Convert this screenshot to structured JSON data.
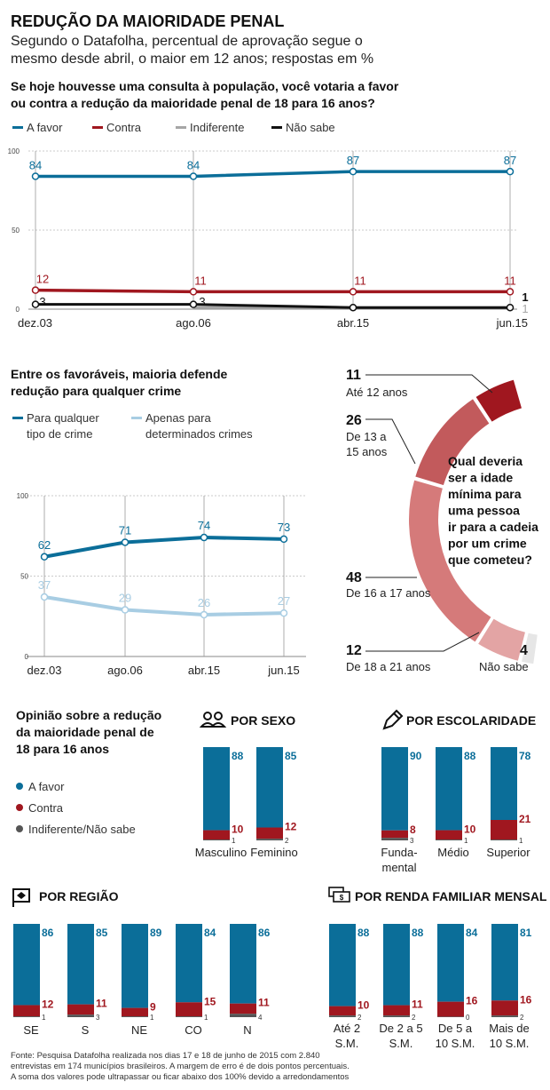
{
  "header": {
    "title": "REDUÇÃO DA MAIORIDADE PENAL",
    "subtitle_1": "Segundo o Datafolha, percentual de aprovação segue o",
    "subtitle_2": "mesmo desde abril, o maior em 12 anos; respostas em %",
    "question_1": "Se hoje houvesse uma consulta à população, você votaria a favor",
    "question_2": "ou contra a redução da maioridade penal de 18 para 16 anos?"
  },
  "colors": {
    "blue": "#0b6e99",
    "red": "#a0171f",
    "gray": "#a6a6a6",
    "black": "#111111",
    "lightblue": "#a8cde3",
    "darkgray": "#555555"
  },
  "chart_data": [
    {
      "type": "line",
      "title": "Se hoje houvesse uma consulta à população, você votaria a favor ou contra a redução da maioridade penal de 18 para 16 anos?",
      "categories": [
        "dez.03",
        "ago.06",
        "abr.15",
        "jun.15"
      ],
      "y_ticks": [
        "100",
        "50",
        "0"
      ],
      "ylim": [
        0,
        100
      ],
      "legend": [
        "A favor",
        "Contra",
        "Indiferente",
        "Não sabe"
      ],
      "series": [
        {
          "name": "A favor",
          "values": [
            84,
            84,
            87,
            87
          ],
          "labels": [
            "84",
            "84",
            "87",
            "87"
          ]
        },
        {
          "name": "Contra",
          "values": [
            12,
            11,
            11,
            11
          ],
          "labels": [
            "12",
            "11",
            "11",
            "11"
          ]
        },
        {
          "name": "Indiferente",
          "values": [
            null,
            null,
            1,
            1
          ],
          "labels": [
            "",
            "",
            "",
            "1"
          ]
        },
        {
          "name": "Não sabe",
          "values": [
            3,
            3,
            1,
            1
          ],
          "labels": [
            "3",
            "3",
            "",
            "1"
          ]
        }
      ]
    },
    {
      "type": "line",
      "title": "Entre os favoráveis, maioria defende redução para qualquer crime",
      "categories": [
        "dez.03",
        "ago.06",
        "abr.15",
        "jun.15"
      ],
      "y_ticks": [
        "100",
        "50",
        "0"
      ],
      "ylim": [
        0,
        100
      ],
      "legend": [
        "Para qualquer tipo de crime",
        "Apenas para determinados crimes"
      ],
      "series": [
        {
          "name": "Para qualquer tipo de crime",
          "values": [
            62,
            71,
            74,
            73
          ],
          "labels": [
            "62",
            "71",
            "74",
            "73"
          ]
        },
        {
          "name": "Apenas para determinados crimes",
          "values": [
            37,
            29,
            26,
            27
          ],
          "labels": [
            "37",
            "29",
            "26",
            "27"
          ]
        }
      ]
    },
    {
      "type": "pie",
      "title": "Qual deveria ser a idade mínima para uma pessoa ir para a cadeia por um crime que cometeu?",
      "slices": [
        {
          "label": "Até 12 anos",
          "value": 11
        },
        {
          "label": "De 13 a 15 anos",
          "value": 26
        },
        {
          "label": "De 16 a 17 anos",
          "value": 48
        },
        {
          "label": "De 18 a 21 anos",
          "value": 12
        },
        {
          "label": "Não sabe",
          "value": 4
        }
      ]
    },
    {
      "type": "bar",
      "title": "POR SEXO",
      "categories": [
        "Masculino",
        "Feminino"
      ],
      "series": [
        {
          "name": "A favor",
          "values": [
            88,
            85
          ]
        },
        {
          "name": "Contra",
          "values": [
            10,
            12
          ]
        },
        {
          "name": "Indiferente/Não sabe",
          "values": [
            1,
            2
          ]
        }
      ]
    },
    {
      "type": "bar",
      "title": "POR ESCOLARIDADE",
      "categories": [
        "Fundamental",
        "Médio",
        "Superior"
      ],
      "series": [
        {
          "name": "A favor",
          "values": [
            90,
            88,
            78
          ]
        },
        {
          "name": "Contra",
          "values": [
            8,
            10,
            21
          ]
        },
        {
          "name": "Indiferente/Não sabe",
          "values": [
            3,
            1,
            1
          ]
        }
      ]
    },
    {
      "type": "bar",
      "title": "POR REGIÃO",
      "categories": [
        "SE",
        "S",
        "NE",
        "CO",
        "N"
      ],
      "series": [
        {
          "name": "A favor",
          "values": [
            86,
            85,
            89,
            84,
            86
          ]
        },
        {
          "name": "Contra",
          "values": [
            12,
            11,
            9,
            15,
            11
          ]
        },
        {
          "name": "Indiferente/Não sabe",
          "values": [
            1,
            3,
            1,
            1,
            4
          ]
        }
      ]
    },
    {
      "type": "bar",
      "title": "POR RENDA FAMILIAR MENSAL",
      "categories": [
        "Até 2 S.M.",
        "De 2 a 5 S.M.",
        "De 5 a 10 S.M.",
        "Mais de 10 S.M."
      ],
      "series": [
        {
          "name": "A favor",
          "values": [
            88,
            88,
            84,
            81
          ]
        },
        {
          "name": "Contra",
          "values": [
            10,
            11,
            16,
            16
          ]
        },
        {
          "name": "Indiferente/Não sabe",
          "values": [
            2,
            2,
            0,
            2
          ]
        }
      ]
    }
  ],
  "donut_question": [
    "Qual deveria",
    "ser a idade",
    "mínima para",
    "uma pessoa",
    "ir para a cadeia",
    "por um crime",
    "que cometeu?"
  ],
  "donut_labels": {
    "ate12": [
      "11",
      "Até 12 anos"
    ],
    "de13a15": [
      "26",
      "De 13 a",
      "15 anos"
    ],
    "de16a17": [
      "48",
      "De 16 a 17 anos"
    ],
    "de18a21": [
      "12",
      "De 18 a 21 anos"
    ],
    "naosabe": [
      "4",
      "Não sabe"
    ]
  },
  "chart2_legend": {
    "blue": [
      "Para qualquer",
      "tipo de crime"
    ],
    "light": [
      "Apenas para",
      "determinados crimes"
    ]
  },
  "chart2_title": [
    "Entre os favoráveis, maioria defende",
    "redução para qualquer crime"
  ],
  "opinion": {
    "title": [
      "Opinião sobre a redução",
      "da maioridade penal de",
      "18 para 16 anos"
    ],
    "legend": [
      "A favor",
      "Contra",
      "Indiferente/Não sabe"
    ]
  },
  "bar_labels": {
    "sexo": [
      [
        "Masculino"
      ],
      [
        "Feminino"
      ]
    ],
    "escolaridade": [
      [
        "Funda-",
        "mental"
      ],
      [
        "Médio"
      ],
      [
        "Superior"
      ]
    ],
    "regiao": [
      [
        "SE"
      ],
      [
        "S"
      ],
      [
        "NE"
      ],
      [
        "CO"
      ],
      [
        "N"
      ]
    ],
    "renda": [
      [
        "Até 2",
        "S.M."
      ],
      [
        "De 2 a 5",
        "S.M."
      ],
      [
        "De 5 a",
        "10 S.M."
      ],
      [
        "Mais de",
        "10 S.M."
      ]
    ]
  },
  "footer": [
    "Fonte: Pesquisa Datafolha realizada nos dias 17 e 18 de junho de 2015 com 2.840",
    "entrevistas em 174 municípios brasileiros. A margem de erro é de dois pontos percentuais.",
    "A soma dos valores pode ultrapassar ou ficar abaixo dos 100% devido a arredondamentos"
  ]
}
